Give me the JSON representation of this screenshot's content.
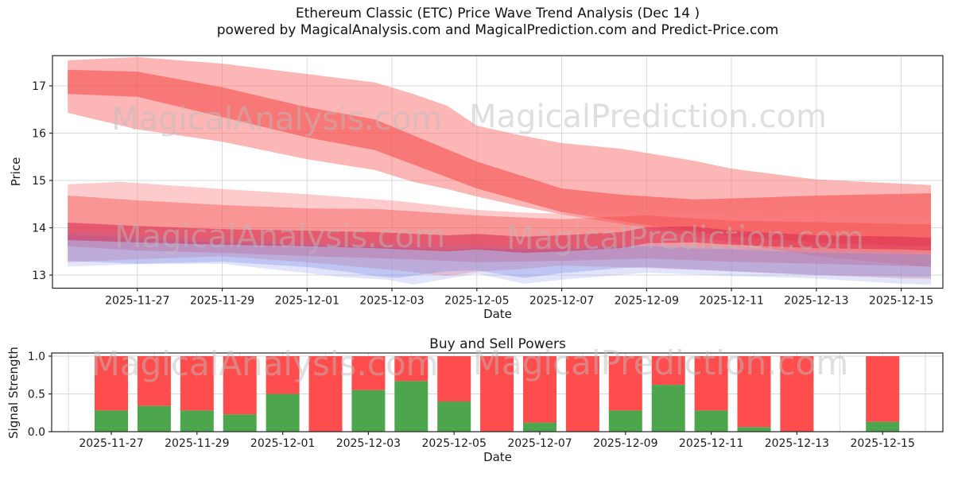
{
  "header": {
    "title": "Ethereum Classic (ETC) Price Wave Trend Analysis (Dec 14 )",
    "subtitle": "powered by MagicalAnalysis.com and MagicalPrediction.com and Predict-Price.com"
  },
  "watermarks": {
    "texts": [
      "MagicalAnalysis.com",
      "MagicalPrediction.com"
    ],
    "color": "#bdbdbd"
  },
  "colors": {
    "bar_red": "#ff4d4d",
    "bar_green": "#4da64d",
    "grid": "#d9d9d9",
    "axis": "#262626",
    "tick_label": "#1a1a1a"
  },
  "chart_data": [
    {
      "type": "area",
      "name": "price-wave-trend",
      "xlabel": "Date",
      "ylabel": "Price",
      "x_epoch_day0": "2025-11-25",
      "xlim_days": [
        0,
        21
      ],
      "ylim": [
        12.72,
        17.64
      ],
      "y_ticks": [
        13,
        14,
        15,
        16,
        17
      ],
      "x_tick_days": [
        2,
        4,
        6,
        8,
        10,
        12,
        14,
        16,
        18,
        20
      ],
      "x_tick_labels": [
        "2025-11-27",
        "2025-11-29",
        "2025-12-01",
        "2025-12-03",
        "2025-12-05",
        "2025-12-07",
        "2025-12-09",
        "2025-12-11",
        "2025-12-13",
        "2025-12-15"
      ],
      "grid": true,
      "legend": "none",
      "bands": [
        {
          "name": "forecast-outer",
          "color": "#f97373",
          "opacity": 0.52,
          "points": [
            [
              0.36,
              17.54,
              16.43
            ],
            [
              2,
              17.61,
              16.08
            ],
            [
              4,
              17.47,
              15.82
            ],
            [
              6,
              17.25,
              15.45
            ],
            [
              7.6,
              17.07,
              15.22
            ],
            [
              8.5,
              16.83,
              14.97
            ],
            [
              9.3,
              16.58,
              14.82
            ],
            [
              10,
              16.16,
              14.66
            ],
            [
              11,
              15.96,
              14.46
            ],
            [
              12,
              15.79,
              14.28
            ],
            [
              13.4,
              15.67,
              14.08
            ],
            [
              15.1,
              15.42,
              13.82
            ],
            [
              16,
              15.25,
              13.69
            ],
            [
              18,
              15.02,
              13.4
            ],
            [
              20.1,
              14.93,
              13.22
            ],
            [
              20.7,
              14.9,
              13.17
            ]
          ]
        },
        {
          "name": "forecast-inner",
          "color": "#f65252",
          "opacity": 0.62,
          "points": [
            [
              0.36,
              17.34,
              16.83
            ],
            [
              2,
              17.3,
              16.77
            ],
            [
              4,
              16.97,
              16.34
            ],
            [
              6,
              16.55,
              15.91
            ],
            [
              7.6,
              16.29,
              15.64
            ],
            [
              10,
              15.4,
              14.83
            ],
            [
              12,
              14.83,
              14.33
            ],
            [
              13.4,
              14.7,
              14.14
            ],
            [
              15.1,
              14.6,
              13.92
            ],
            [
              16,
              14.62,
              13.82
            ],
            [
              18,
              14.68,
              13.69
            ],
            [
              20.1,
              14.72,
              13.62
            ],
            [
              20.7,
              14.73,
              13.61
            ]
          ]
        },
        {
          "name": "cluster-pink",
          "color": "#f97d7d",
          "opacity": 0.4,
          "points": [
            [
              0.36,
              14.92,
              13.27
            ],
            [
              1.6,
              14.97,
              13.32
            ],
            [
              4,
              14.82,
              13.4
            ],
            [
              6,
              14.71,
              13.27
            ],
            [
              8.1,
              14.57,
              13.1
            ],
            [
              9.3,
              14.45,
              12.98
            ],
            [
              10,
              14.38,
              13.07
            ],
            [
              11.1,
              14.32,
              13.13
            ],
            [
              12,
              14.3,
              13.2
            ],
            [
              14,
              14.38,
              13.15
            ],
            [
              16,
              14.33,
              13.08
            ],
            [
              18,
              14.28,
              13.0
            ],
            [
              20.1,
              14.24,
              12.93
            ],
            [
              20.7,
              14.23,
              12.92
            ]
          ]
        },
        {
          "name": "cluster-red",
          "color": "#f54949",
          "opacity": 0.42,
          "points": [
            [
              0.36,
              14.68,
              13.61
            ],
            [
              2,
              14.58,
              13.52
            ],
            [
              4,
              14.48,
              13.47
            ],
            [
              6,
              14.41,
              13.4
            ],
            [
              7.6,
              14.4,
              13.36
            ],
            [
              9.3,
              14.3,
              13.3
            ],
            [
              10,
              14.26,
              13.27
            ],
            [
              12,
              14.18,
              13.3
            ],
            [
              14,
              14.26,
              13.35
            ],
            [
              16,
              14.15,
              13.28
            ],
            [
              18,
              14.12,
              13.24
            ],
            [
              20.1,
              14.08,
              13.19
            ],
            [
              20.7,
              14.07,
              13.18
            ]
          ]
        },
        {
          "name": "cluster-lavender",
          "color": "#9aa4ef",
          "opacity": 0.3,
          "points": [
            [
              0.36,
              13.94,
              13.18
            ],
            [
              2,
              13.86,
              13.23
            ],
            [
              4,
              13.77,
              13.24
            ],
            [
              6.8,
              13.71,
              12.96
            ],
            [
              7.9,
              13.69,
              12.9
            ],
            [
              8.5,
              13.67,
              12.8
            ],
            [
              10,
              13.64,
              13.03
            ],
            [
              11.1,
              13.6,
              12.82
            ],
            [
              12,
              13.61,
              12.9
            ],
            [
              14,
              13.66,
              13.05
            ],
            [
              16,
              13.61,
              12.98
            ],
            [
              18,
              13.54,
              12.93
            ],
            [
              20.1,
              13.49,
              12.81
            ],
            [
              20.7,
              13.47,
              12.8
            ]
          ]
        },
        {
          "name": "cluster-blue",
          "color": "#7280e6",
          "opacity": 0.3,
          "points": [
            [
              0.36,
              13.86,
              13.3
            ],
            [
              2,
              13.77,
              13.24
            ],
            [
              4,
              13.69,
              13.28
            ],
            [
              6,
              13.64,
              13.17
            ],
            [
              7,
              13.61,
              13.06
            ],
            [
              7.6,
              13.6,
              12.98
            ],
            [
              8.1,
              13.58,
              12.94
            ],
            [
              9.3,
              13.54,
              13.08
            ],
            [
              10,
              13.57,
              13.1
            ],
            [
              11.1,
              13.54,
              12.94
            ],
            [
              12,
              13.54,
              13.04
            ],
            [
              13.4,
              13.6,
              13.15
            ],
            [
              14,
              13.61,
              13.17
            ],
            [
              16,
              13.54,
              13.08
            ],
            [
              18,
              13.47,
              13.0
            ],
            [
              20.1,
              13.44,
              12.97
            ],
            [
              20.7,
              13.43,
              12.96
            ]
          ]
        },
        {
          "name": "cluster-core",
          "color": "#d62a50",
          "opacity": 0.55,
          "points": [
            [
              0.36,
              14.11,
              13.74
            ],
            [
              2,
              14.04,
              13.69
            ],
            [
              4,
              13.97,
              13.64
            ],
            [
              6,
              13.94,
              13.61
            ],
            [
              7.6,
              13.91,
              13.57
            ],
            [
              9.3,
              13.84,
              13.5
            ],
            [
              10,
              13.87,
              13.54
            ],
            [
              11.1,
              13.81,
              13.47
            ],
            [
              12,
              13.84,
              13.5
            ],
            [
              13.4,
              13.91,
              13.57
            ],
            [
              14,
              14.01,
              13.67
            ],
            [
              15.1,
              14.03,
              13.69
            ],
            [
              16,
              13.94,
              13.64
            ],
            [
              18,
              13.84,
              13.57
            ],
            [
              20.1,
              13.81,
              13.54
            ],
            [
              20.7,
              13.79,
              13.52
            ]
          ]
        }
      ]
    },
    {
      "type": "bar",
      "name": "buy-sell-powers",
      "title": "Buy and Sell Powers",
      "xlabel": "Date",
      "ylabel": "Signal Strength",
      "x_epoch_day0": "2025-11-25",
      "xlim_days": [
        0.6,
        21.4
      ],
      "ylim": [
        0,
        1.04
      ],
      "y_ticks": [
        "0.0",
        "0.5",
        "1.0"
      ],
      "x_tick_days": [
        2,
        4,
        6,
        8,
        10,
        12,
        14,
        16,
        18,
        20
      ],
      "x_tick_labels": [
        "2025-11-27",
        "2025-11-29",
        "2025-12-01",
        "2025-12-03",
        "2025-12-05",
        "2025-12-07",
        "2025-12-09",
        "2025-12-11",
        "2025-12-13",
        "2025-12-15"
      ],
      "grid": true,
      "stacked": true,
      "series_names": [
        "buy",
        "sell"
      ],
      "bars": [
        {
          "date": "2025-11-27",
          "day": 2,
          "buy": 0.28,
          "sell": 0.72
        },
        {
          "date": "2025-11-28",
          "day": 3,
          "buy": 0.34,
          "sell": 0.66
        },
        {
          "date": "2025-11-29",
          "day": 4,
          "buy": 0.28,
          "sell": 0.72
        },
        {
          "date": "2025-11-30",
          "day": 5,
          "buy": 0.23,
          "sell": 0.77
        },
        {
          "date": "2025-12-01",
          "day": 6,
          "buy": 0.5,
          "sell": 0.5
        },
        {
          "date": "2025-12-02",
          "day": 7,
          "buy": 0.0,
          "sell": 1.0
        },
        {
          "date": "2025-12-03",
          "day": 8,
          "buy": 0.55,
          "sell": 0.45
        },
        {
          "date": "2025-12-04",
          "day": 9,
          "buy": 0.67,
          "sell": 0.33
        },
        {
          "date": "2025-12-05",
          "day": 10,
          "buy": 0.4,
          "sell": 0.6
        },
        {
          "date": "2025-12-06",
          "day": 11,
          "buy": 0.0,
          "sell": 1.0
        },
        {
          "date": "2025-12-07",
          "day": 12,
          "buy": 0.12,
          "sell": 0.88
        },
        {
          "date": "2025-12-08",
          "day": 13,
          "buy": 0.0,
          "sell": 1.0
        },
        {
          "date": "2025-12-09",
          "day": 14,
          "buy": 0.28,
          "sell": 0.72
        },
        {
          "date": "2025-12-10",
          "day": 15,
          "buy": 0.62,
          "sell": 0.38
        },
        {
          "date": "2025-12-11",
          "day": 16,
          "buy": 0.28,
          "sell": 0.72
        },
        {
          "date": "2025-12-12",
          "day": 17,
          "buy": 0.06,
          "sell": 0.94
        },
        {
          "date": "2025-12-13",
          "day": 18,
          "buy": 0.0,
          "sell": 1.0
        },
        {
          "date": "2025-12-15",
          "day": 20,
          "buy": 0.13,
          "sell": 0.87
        }
      ]
    }
  ]
}
